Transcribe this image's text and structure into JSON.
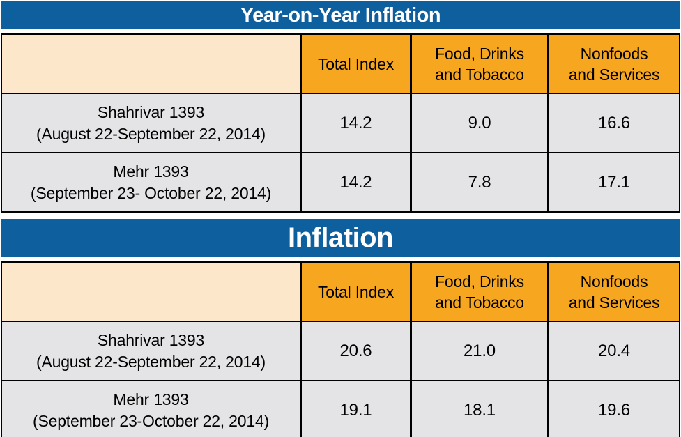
{
  "colors": {
    "title_bar_blue": "#0E5F9D",
    "title_text": "#FFFFFF",
    "column_header_orange": "#F7A620",
    "corner_cell_cream": "#FDE7CA",
    "data_row_gray": "#E4E4E7",
    "border_black": "#000000",
    "cell_text": "#000000"
  },
  "tables": [
    {
      "title": "Year-on-Year Inflation",
      "columns": [
        {
          "line1": "",
          "line2": ""
        },
        {
          "line1": "Total Index",
          "line2": ""
        },
        {
          "line1": "Food, Drinks",
          "line2": "and Tobacco"
        },
        {
          "line1": "Nonfoods",
          "line2": "and Services"
        }
      ],
      "rows": [
        {
          "name": "Shahrivar 1393",
          "period": "(August 22-September 22, 2014)",
          "values": [
            "14.2",
            "9.0",
            "16.6"
          ]
        },
        {
          "name": "Mehr 1393",
          "period": "(September 23- October 22, 2014)",
          "values": [
            "14.2",
            "7.8",
            "17.1"
          ]
        }
      ]
    },
    {
      "title": "Inflation",
      "columns": [
        {
          "line1": "",
          "line2": ""
        },
        {
          "line1": "Total Index",
          "line2": ""
        },
        {
          "line1": "Food, Drinks",
          "line2": "and Tobacco"
        },
        {
          "line1": "Nonfoods",
          "line2": "and Services"
        }
      ],
      "rows": [
        {
          "name": "Shahrivar 1393",
          "period": "(August 22-September 22, 2014)",
          "values": [
            "20.6",
            "21.0",
            "20.4"
          ]
        },
        {
          "name": "Mehr 1393",
          "period": "(September 23-October 22, 2014)",
          "values": [
            "19.1",
            "18.1",
            "19.6"
          ]
        }
      ]
    }
  ],
  "chart_data": [
    {
      "type": "table",
      "title": "Year-on-Year Inflation",
      "columns": [
        "",
        "Total Index",
        "Food, Drinks and Tobacco",
        "Nonfoods and Services"
      ],
      "rows": [
        [
          "Shahrivar 1393 (August 22-September 22, 2014)",
          14.2,
          9.0,
          16.6
        ],
        [
          "Mehr 1393 (September 23- October 22, 2014)",
          14.2,
          7.8,
          17.1
        ]
      ]
    },
    {
      "type": "table",
      "title": "Inflation",
      "columns": [
        "",
        "Total Index",
        "Food, Drinks and Tobacco",
        "Nonfoods and Services"
      ],
      "rows": [
        [
          "Shahrivar 1393 (August 22-September 22, 2014)",
          20.6,
          21.0,
          20.4
        ],
        [
          "Mehr 1393 (September 23-October 22, 2014)",
          19.1,
          18.1,
          19.6
        ]
      ]
    }
  ]
}
